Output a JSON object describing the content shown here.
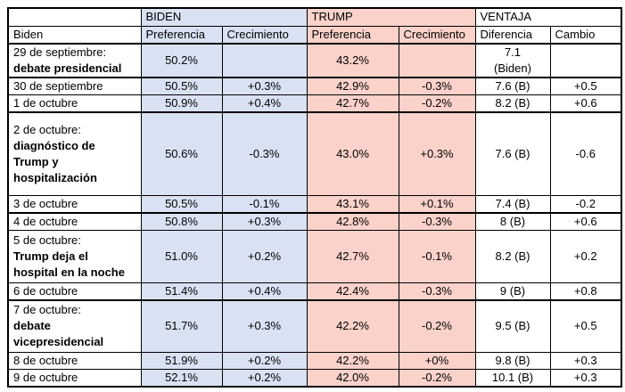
{
  "colors": {
    "biden_column_bg": "#d9e2f3",
    "trump_column_bg": "#fbd2ca",
    "border": "#000000",
    "text": "#000000",
    "page_bg": "#ffffff"
  },
  "table": {
    "header": {
      "corner": "",
      "biden_group": "BIDEN",
      "trump_group": "TRUMP",
      "ventaja_group": "VENTAJA",
      "row_label": "Biden",
      "biden_pref": "Preferencia",
      "biden_crec": "Crecimiento",
      "trump_pref": "Preferencia",
      "trump_crec": "Crecimiento",
      "ventaja_dif": "Diferencia",
      "ventaja_cambio": "Cambio"
    },
    "rows": [
      {
        "date": "29 de septiembre:",
        "event": "debate presidencial",
        "biden_pref": "50.2%",
        "biden_crec": "",
        "trump_pref": "43.2%",
        "trump_crec": "",
        "diferencia": "7.1\n(Biden)",
        "cambio": ""
      },
      {
        "date": "30 de septiembre",
        "event": "",
        "biden_pref": "50.5%",
        "biden_crec": "+0.3%",
        "trump_pref": "42.9%",
        "trump_crec": "-0.3%",
        "diferencia": "7.6 (B)",
        "cambio": "+0.5"
      },
      {
        "date": "1 de octubre",
        "event": "",
        "biden_pref": "50.9%",
        "biden_crec": "+0.4%",
        "trump_pref": "42.7%",
        "trump_crec": "-0.2%",
        "diferencia": "8.2 (B)",
        "cambio": "+0.6"
      },
      {
        "date": "2 de octubre:",
        "event": "diagnóstico de\nTrump y\nhospitalización",
        "biden_pref": "50.6%",
        "biden_crec": "-0.3%",
        "trump_pref": "43.0%",
        "trump_crec": "+0.3%",
        "diferencia": "7.6 (B)",
        "cambio": "-0.6"
      },
      {
        "date": "3 de octubre",
        "event": "",
        "biden_pref": "50.5%",
        "biden_crec": "-0.1%",
        "trump_pref": "43.1%",
        "trump_crec": "+0.1%",
        "diferencia": "7.4 (B)",
        "cambio": "-0.2"
      },
      {
        "date": "4 de octubre",
        "event": "",
        "biden_pref": "50.8%",
        "biden_crec": "+0.3%",
        "trump_pref": "42.8%",
        "trump_crec": "-0.3%",
        "diferencia": "8 (B)",
        "cambio": "+0.6"
      },
      {
        "date": "5 de octubre:",
        "event": "Trump deja el\nhospital en la noche",
        "biden_pref": "51.0%",
        "biden_crec": "+0.2%",
        "trump_pref": "42.7%",
        "trump_crec": "-0.1%",
        "diferencia": "8.2 (B)",
        "cambio": "+0.2"
      },
      {
        "date": "6 de octubre",
        "event": "",
        "biden_pref": "51.4%",
        "biden_crec": "+0.4%",
        "trump_pref": "42.4%",
        "trump_crec": "-0.3%",
        "diferencia": "9 (B)",
        "cambio": "+0.8"
      },
      {
        "date": "7 de octubre:",
        "event": "debate\nvicepresidencial",
        "biden_pref": "51.7%",
        "biden_crec": "+0.3%",
        "trump_pref": "42.2%",
        "trump_crec": "-0.2%",
        "diferencia": "9.5 (B)",
        "cambio": "+0.5"
      },
      {
        "date": "8 de octubre",
        "event": "",
        "biden_pref": "51.9%",
        "biden_crec": "+0.2%",
        "trump_pref": "42.2%",
        "trump_crec": "+0%",
        "diferencia": "9.8 (B)",
        "cambio": "+0.3"
      },
      {
        "date": "9 de octubre",
        "event": "",
        "biden_pref": "52.1%",
        "biden_crec": "+0.2%",
        "trump_pref": "42.0%",
        "trump_crec": "-0.2%",
        "diferencia": "10.1 (B)",
        "cambio": "+0.3"
      }
    ]
  }
}
